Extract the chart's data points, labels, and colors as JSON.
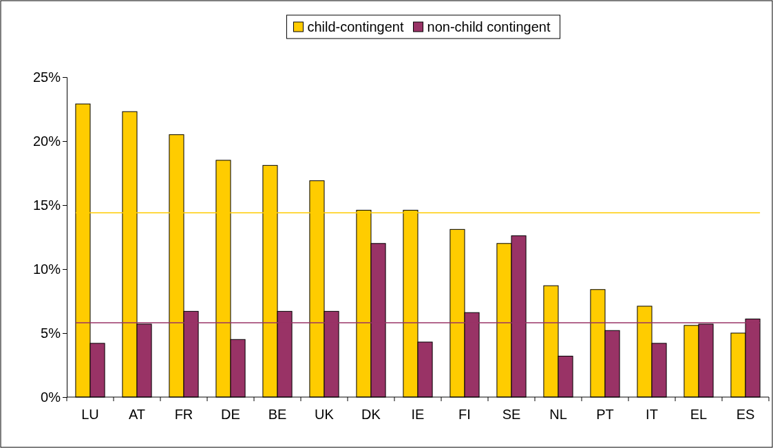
{
  "chart_data": {
    "type": "bar",
    "categories": [
      "LU",
      "AT",
      "FR",
      "DE",
      "BE",
      "UK",
      "DK",
      "IE",
      "FI",
      "SE",
      "NL",
      "PT",
      "IT",
      "EL",
      "ES"
    ],
    "series": [
      {
        "name": "child-contingent",
        "color": "#ffcc00",
        "values": [
          22.9,
          22.3,
          20.5,
          18.5,
          18.1,
          16.9,
          14.6,
          14.6,
          13.1,
          12.0,
          8.7,
          8.4,
          7.1,
          5.6,
          5.0
        ]
      },
      {
        "name": "non-child contingent",
        "color": "#993366",
        "values": [
          4.2,
          5.7,
          6.7,
          4.5,
          6.7,
          6.7,
          12.0,
          4.3,
          6.6,
          12.6,
          3.2,
          5.2,
          4.2,
          5.7,
          6.1
        ]
      }
    ],
    "ylim": [
      0,
      25
    ],
    "yticks": [
      {
        "value": 0,
        "label": "0%"
      },
      {
        "value": 5,
        "label": "5%"
      },
      {
        "value": 10,
        "label": "10%"
      },
      {
        "value": 15,
        "label": "15%"
      },
      {
        "value": 20,
        "label": "20%"
      },
      {
        "value": 25,
        "label": "25%"
      }
    ],
    "ref_lines": [
      {
        "axis": "y",
        "value": 14.4,
        "color": "#ffcc00"
      },
      {
        "axis": "y",
        "value": 5.8,
        "color": "#993366"
      }
    ],
    "legend": "top",
    "grid": false
  }
}
